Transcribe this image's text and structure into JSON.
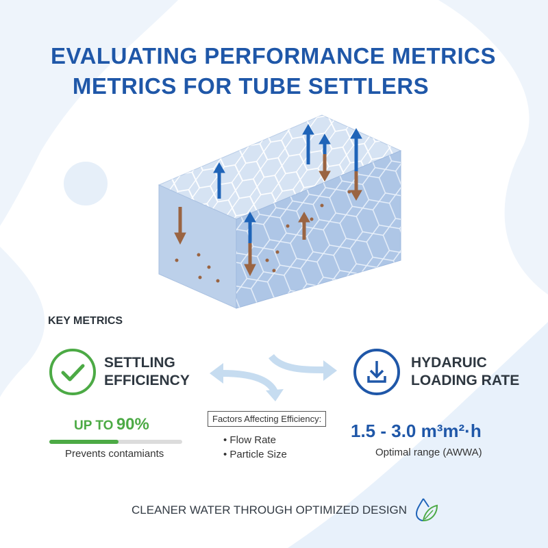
{
  "title": {
    "line1": "EVALUATING PERFORMANCE METRICS",
    "line2": "METRICS FOR TUBE SETTLERS"
  },
  "section_heading": "KEY METRICS",
  "metrics": [
    {
      "label_line1": "SETTLING",
      "label_line2": "EFFICIENCY",
      "icon": "check-circle-icon",
      "value_prefix": "UP TO",
      "value": "90%",
      "progress_fill": 0.52,
      "caption": "Prevents contamiants",
      "color": "#4caa45"
    },
    {
      "label_line1": "HYDARUIC",
      "label_line2": "LOADING RATE",
      "icon": "download-tray-icon",
      "value": "1.5 - 3.0 m³m²·h",
      "caption": "Optimal range (AWWA)",
      "color": "#1f57a8"
    }
  ],
  "factors": {
    "title": "Factors Affecting Efficiency:",
    "items": [
      "Flow Rate",
      "Particle Size"
    ]
  },
  "footer": {
    "text": "CLEANER WATER THROUGH OPTIMIZED DESIGN",
    "icon": "water-drop-leaf-icon"
  },
  "colors": {
    "blue_arrow": "#1f64b8",
    "brown_arrow": "#9a6442",
    "accent_blue": "#1f57a8",
    "accent_green": "#4caa45"
  }
}
